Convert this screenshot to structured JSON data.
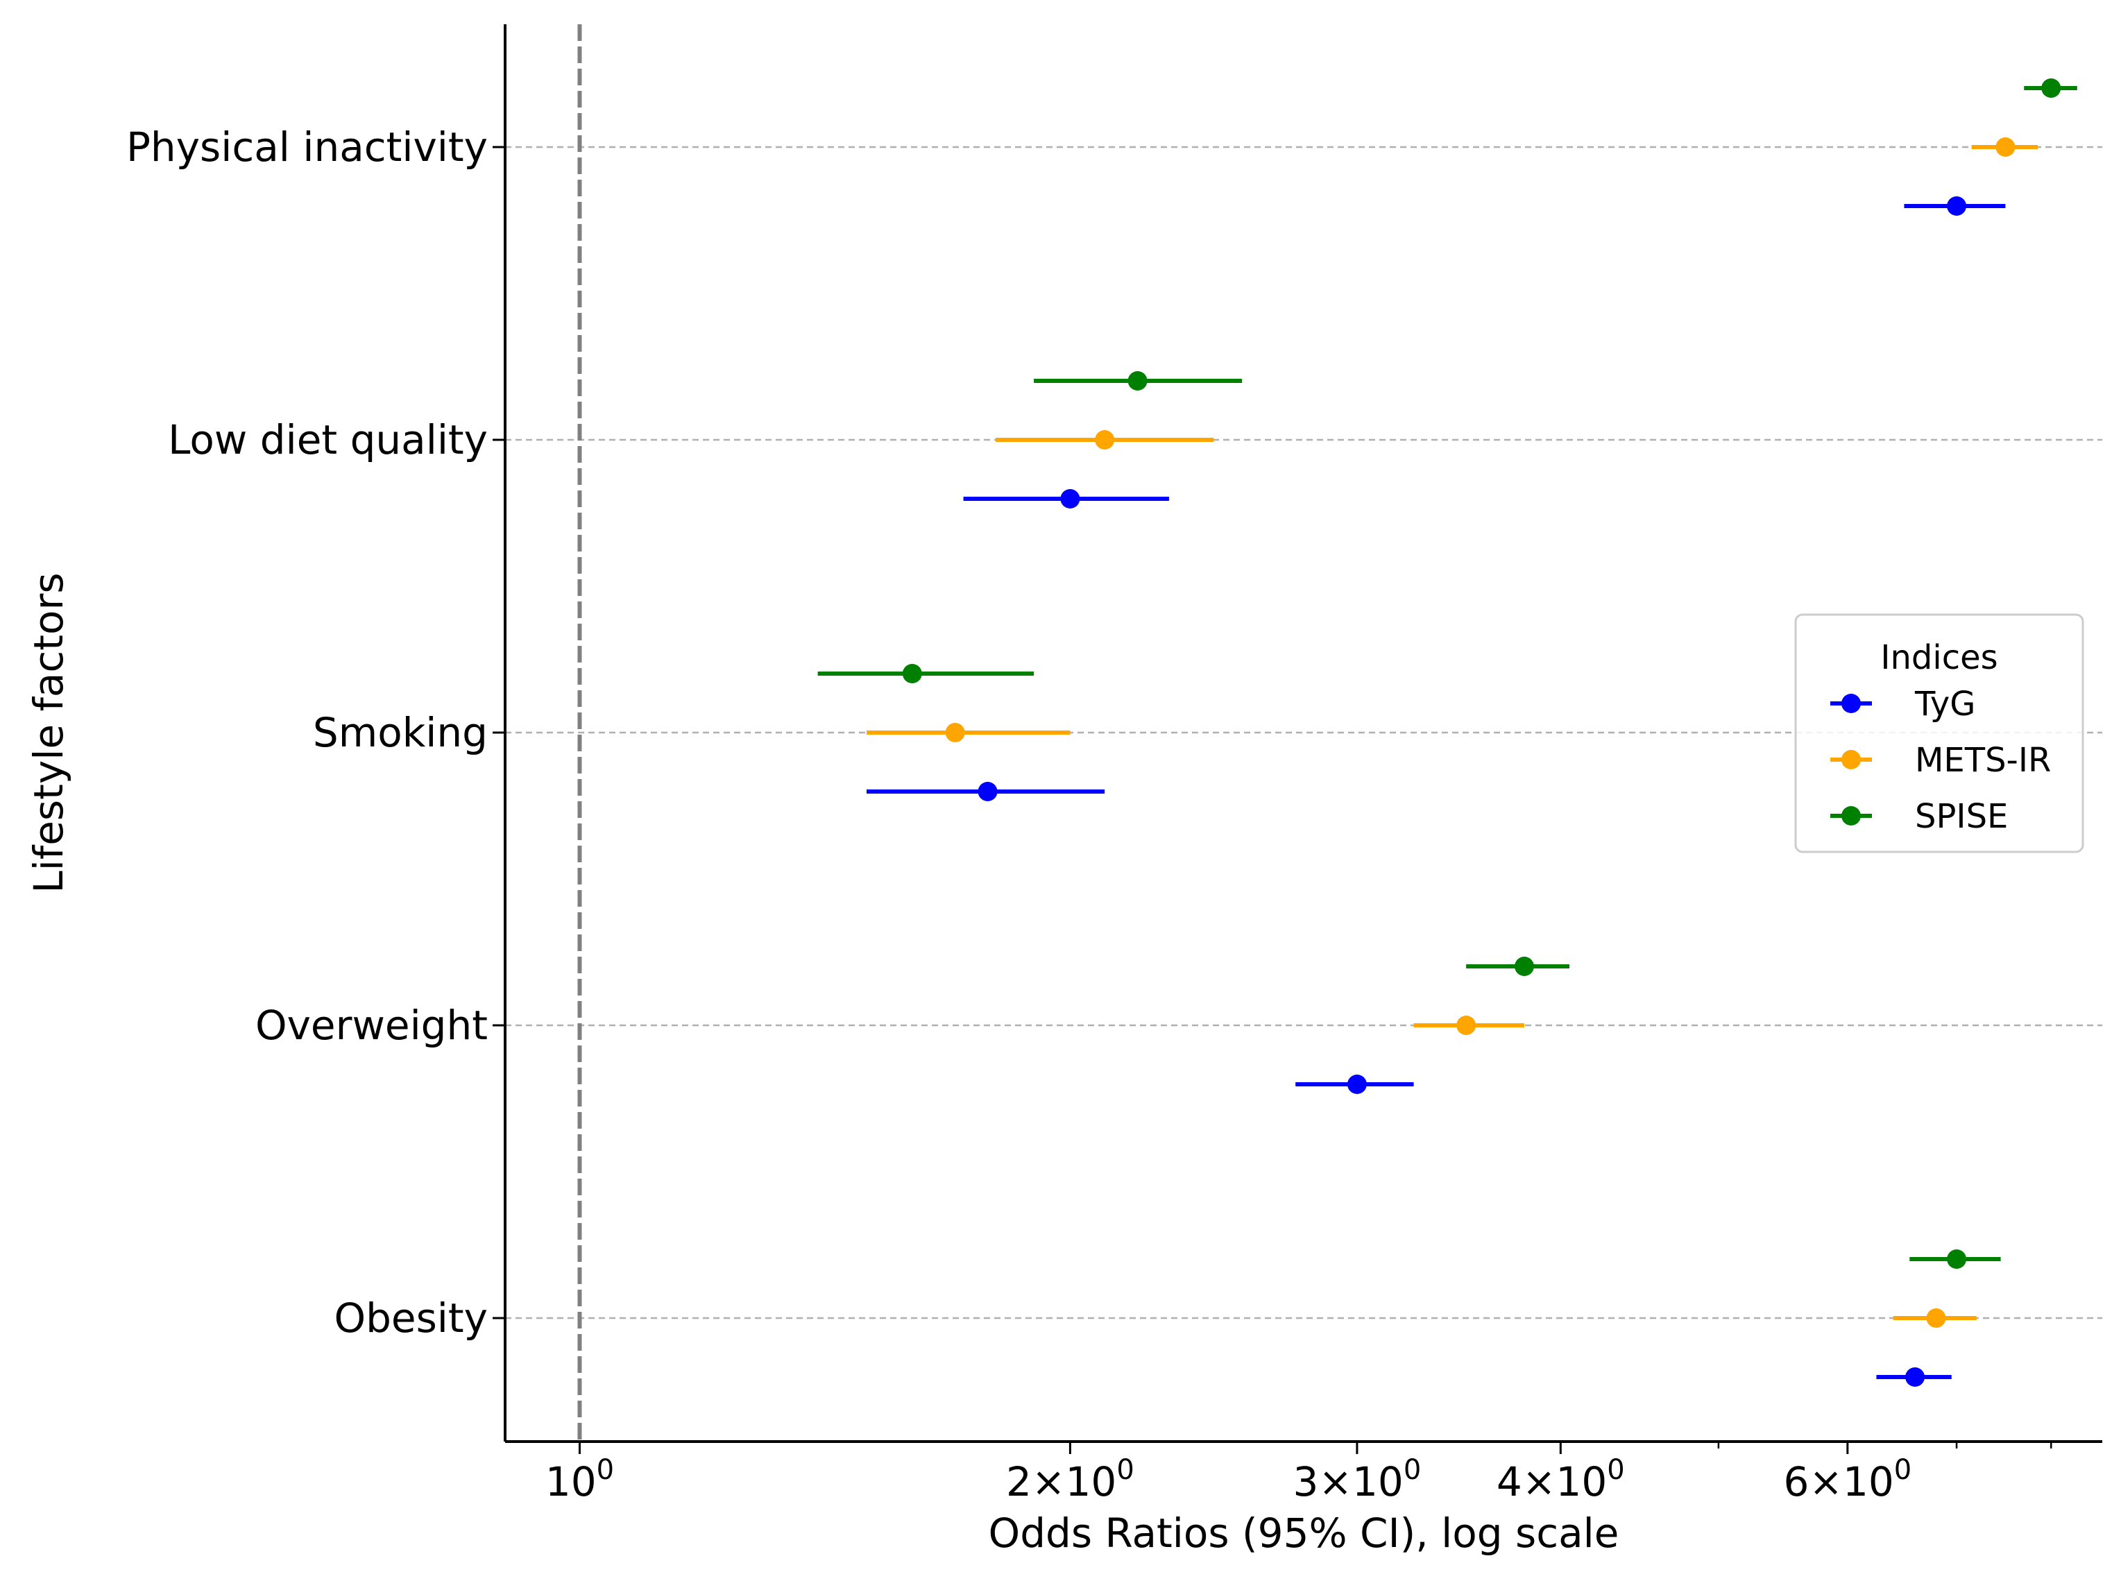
{
  "chart_data": {
    "type": "scatter",
    "subtype": "forest-plot",
    "title": "",
    "xlabel": "Odds Ratios (95% CI), log scale",
    "ylabel": "Lifestyle factors",
    "x_scale": "log",
    "xlim": [
      0.9,
      8.6
    ],
    "x_ticks": [
      {
        "value": 1,
        "base": "10",
        "exp": "0"
      },
      {
        "value": 2,
        "base": "2×10",
        "exp": "0"
      },
      {
        "value": 3,
        "base": "3×10",
        "exp": "0"
      },
      {
        "value": 4,
        "base": "4×10",
        "exp": "0"
      },
      {
        "value": 6,
        "base": "6×10",
        "exp": "0"
      }
    ],
    "reference_line": 1,
    "grid": "horizontal dashed",
    "categories": [
      "Physical inactivity",
      "Low diet quality",
      "Smoking",
      "Overweight",
      "Obesity"
    ],
    "series": [
      {
        "name": "TyG",
        "color": "#0000ff",
        "points": [
          {
            "category": "Physical inactivity",
            "or": 7.0,
            "low": 6.5,
            "high": 7.5
          },
          {
            "category": "Low diet quality",
            "or": 2.0,
            "low": 1.72,
            "high": 2.3
          },
          {
            "category": "Smoking",
            "or": 1.78,
            "low": 1.5,
            "high": 2.1
          },
          {
            "category": "Overweight",
            "or": 3.0,
            "low": 2.75,
            "high": 3.25
          },
          {
            "category": "Obesity",
            "or": 6.6,
            "low": 6.25,
            "high": 6.95
          }
        ]
      },
      {
        "name": "METS-IR",
        "color": "#ffa500",
        "points": [
          {
            "category": "Physical inactivity",
            "or": 7.5,
            "low": 7.15,
            "high": 7.85
          },
          {
            "category": "Low diet quality",
            "or": 2.1,
            "low": 1.8,
            "high": 2.45
          },
          {
            "category": "Smoking",
            "or": 1.7,
            "low": 1.5,
            "high": 2.0
          },
          {
            "category": "Overweight",
            "or": 3.5,
            "low": 3.25,
            "high": 3.8
          },
          {
            "category": "Obesity",
            "or": 6.8,
            "low": 6.4,
            "high": 7.2
          }
        ]
      },
      {
        "name": "SPISE",
        "color": "#008000",
        "points": [
          {
            "category": "Physical inactivity",
            "or": 8.0,
            "low": 7.7,
            "high": 8.3
          },
          {
            "category": "Low diet quality",
            "or": 2.2,
            "low": 1.9,
            "high": 2.55
          },
          {
            "category": "Smoking",
            "or": 1.6,
            "low": 1.4,
            "high": 1.9
          },
          {
            "category": "Overweight",
            "or": 3.8,
            "low": 3.5,
            "high": 4.05
          },
          {
            "category": "Obesity",
            "or": 7.0,
            "low": 6.55,
            "high": 7.45
          }
        ]
      }
    ],
    "legend": {
      "title": "Indices",
      "placement": "center-right"
    }
  }
}
